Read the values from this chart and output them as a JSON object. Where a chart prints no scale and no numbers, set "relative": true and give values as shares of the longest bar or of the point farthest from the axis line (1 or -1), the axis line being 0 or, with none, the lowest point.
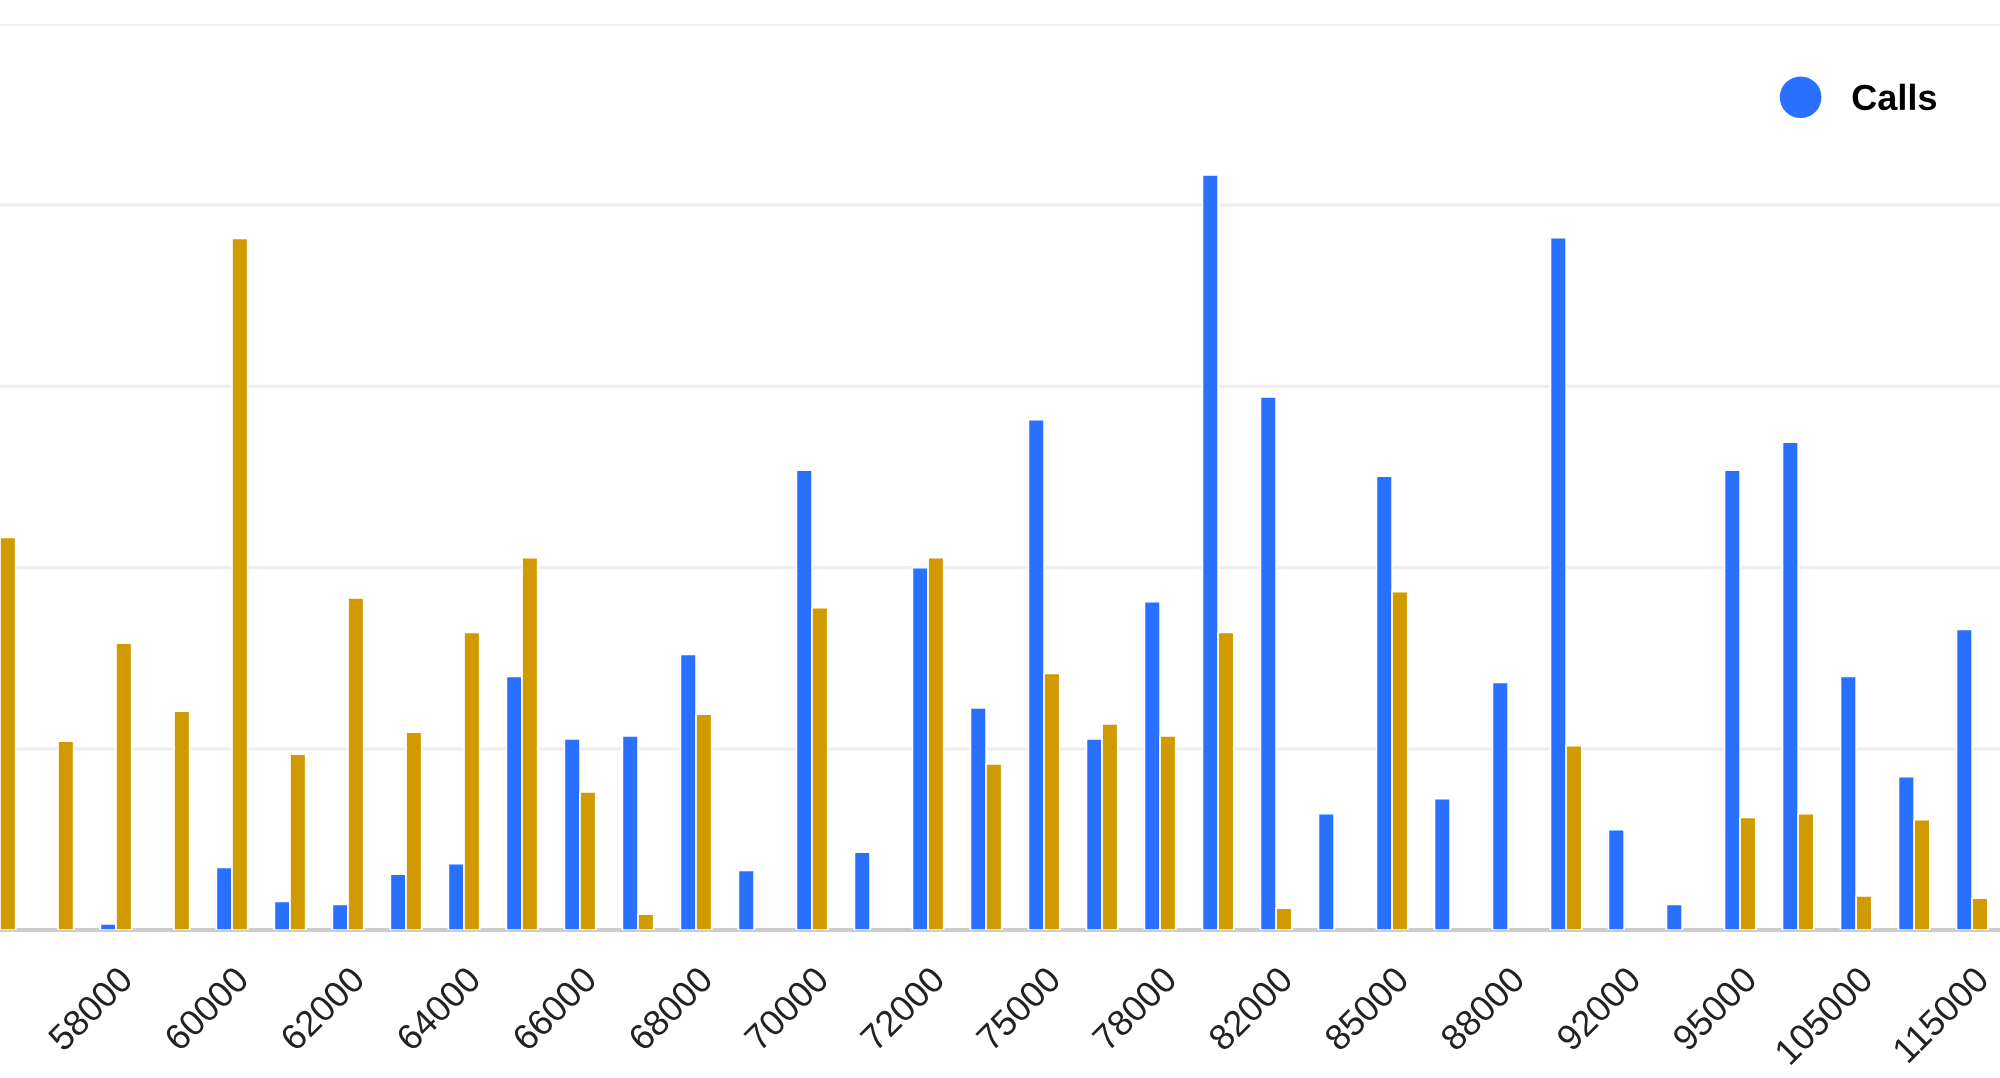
{
  "chart_data": {
    "type": "bar",
    "relative": true,
    "grid": "y",
    "legend": "top right",
    "marker": "circle",
    "categories": [
      null,
      null,
      "58000",
      null,
      "60000",
      null,
      "62000",
      null,
      "64000",
      null,
      "66000",
      null,
      "68000",
      null,
      "70000",
      null,
      "72000",
      null,
      "75000",
      null,
      "78000",
      null,
      "82000",
      null,
      "85000",
      null,
      "88000",
      null,
      "92000",
      null,
      "95000",
      null,
      "105000",
      null,
      "115000"
    ],
    "series": [
      {
        "name": "Calls",
        "color": "#2970ff",
        "values": [
          null,
          null,
          0.008,
          null,
          0.083,
          0.038,
          0.034,
          0.074,
          0.088,
          0.336,
          0.253,
          0.257,
          0.365,
          0.079,
          0.609,
          0.103,
          0.48,
          0.294,
          0.676,
          0.253,
          0.435,
          1.0,
          0.706,
          0.154,
          0.601,
          0.174,
          0.328,
          0.917,
          0.133,
          0.034,
          0.609,
          0.646,
          0.336,
          0.203,
          0.398
        ]
      },
      {
        "color": "#d09a00",
        "values": [
          0.52,
          0.25,
          0.38,
          0.29,
          0.916,
          0.233,
          0.44,
          0.262,
          0.394,
          0.493,
          0.183,
          0.021,
          0.286,
          null,
          0.427,
          null,
          0.493,
          0.22,
          0.34,
          0.273,
          0.257,
          0.394,
          0.029,
          null,
          0.448,
          null,
          null,
          0.244,
          null,
          null,
          0.149,
          0.154,
          0.045,
          0.146,
          0.042
        ]
      }
    ]
  }
}
